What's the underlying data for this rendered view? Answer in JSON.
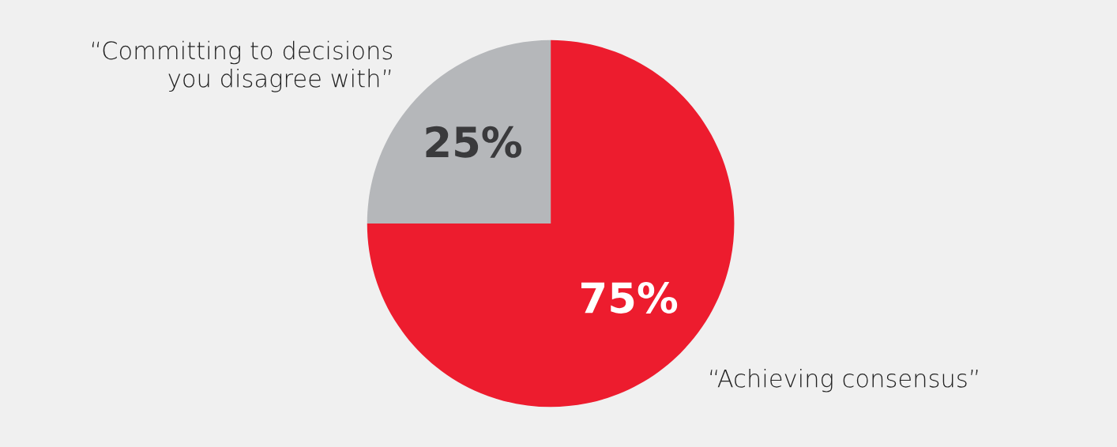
{
  "chart_data": {
    "type": "pie",
    "categories": [
      "“Achieving consensus”",
      "“Committing to decisions\nyou disagree with”"
    ],
    "values": [
      75,
      25
    ],
    "colors": [
      "#ed1c2e",
      "#b5b7ba"
    ],
    "value_labels": [
      "75%",
      "25%"
    ]
  }
}
